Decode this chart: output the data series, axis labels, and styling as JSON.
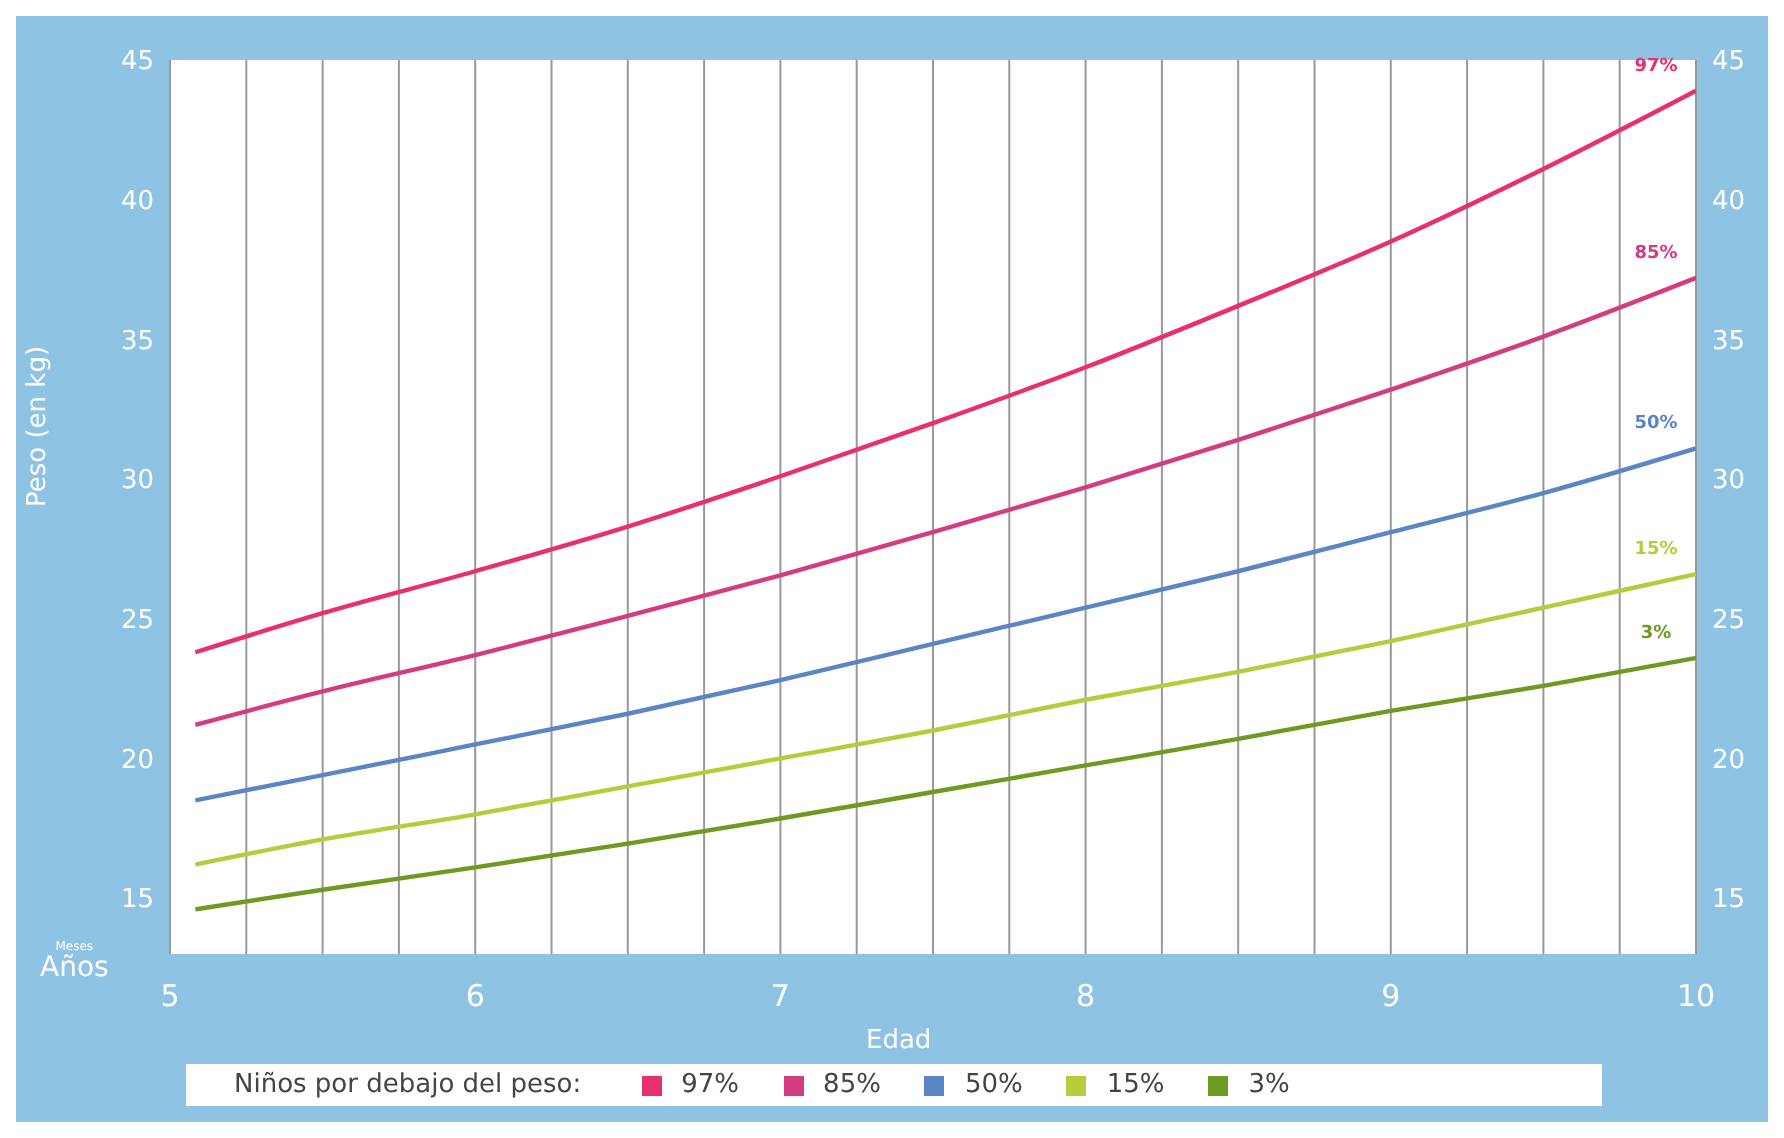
{
  "chart_data": {
    "type": "line",
    "xlabel": "Edad",
    "ylabel": "Peso (en kg)",
    "legend_title": "Niños por debajo del peso:",
    "x": [
      5.083,
      5.5,
      6,
      6.5,
      7,
      7.5,
      8,
      8.5,
      9,
      9.5,
      10
    ],
    "series": [
      {
        "name": "97%",
        "color": "#e8306e",
        "values": [
          23.8,
          25.2,
          26.7,
          28.3,
          30.1,
          32.0,
          34.0,
          36.2,
          38.5,
          41.1,
          43.9
        ]
      },
      {
        "name": "85%",
        "color": "#d43c82",
        "values": [
          21.2,
          22.4,
          23.7,
          25.1,
          26.55,
          28.1,
          29.7,
          31.4,
          33.2,
          35.1,
          37.2
        ]
      },
      {
        "name": "50%",
        "color": "#5a86c6",
        "values": [
          18.5,
          19.4,
          20.5,
          21.6,
          22.8,
          24.1,
          25.4,
          26.7,
          28.1,
          29.5,
          31.1
        ]
      },
      {
        "name": "15%",
        "color": "#b6cc3c",
        "values": [
          16.2,
          17.1,
          18.0,
          19.0,
          20.0,
          21.0,
          22.1,
          23.1,
          24.2,
          25.4,
          26.6
        ]
      },
      {
        "name": "3%",
        "color": "#6e9a22",
        "values": [
          14.6,
          15.3,
          16.1,
          16.95,
          17.85,
          18.8,
          19.75,
          20.7,
          21.7,
          22.6,
          23.6
        ]
      }
    ],
    "xlim": [
      5,
      10
    ],
    "xticks": [
      5,
      {
        "value": 5.25,
        "label": null
      },
      {
        "value": 5.5,
        "label": null
      },
      {
        "value": 5.75,
        "label": null
      },
      6,
      {
        "value": 6.25,
        "label": null
      },
      {
        "value": 6.5,
        "label": null
      },
      {
        "value": 6.75,
        "label": null
      },
      7,
      {
        "value": 7.25,
        "label": null
      },
      {
        "value": 7.5,
        "label": null
      },
      {
        "value": 7.75,
        "label": null
      },
      8,
      {
        "value": 8.25,
        "label": null
      },
      {
        "value": 8.5,
        "label": null
      },
      {
        "value": 8.75,
        "label": null
      },
      9,
      {
        "value": 9.25,
        "label": null
      },
      {
        "value": 9.5,
        "label": null
      },
      {
        "value": 9.75,
        "label": null
      },
      10
    ],
    "ylim": [
      13,
      45
    ],
    "yticks": [
      15,
      20,
      25,
      30,
      35,
      40,
      45
    ],
    "y2lim": [
      13,
      45
    ],
    "y2ticks": [
      15,
      20,
      25,
      30,
      35,
      40,
      45
    ],
    "annotations": [
      "Meses",
      "Años"
    ],
    "grid": true,
    "legend": "bottom",
    "marker": "none",
    "line_style": "solid"
  }
}
